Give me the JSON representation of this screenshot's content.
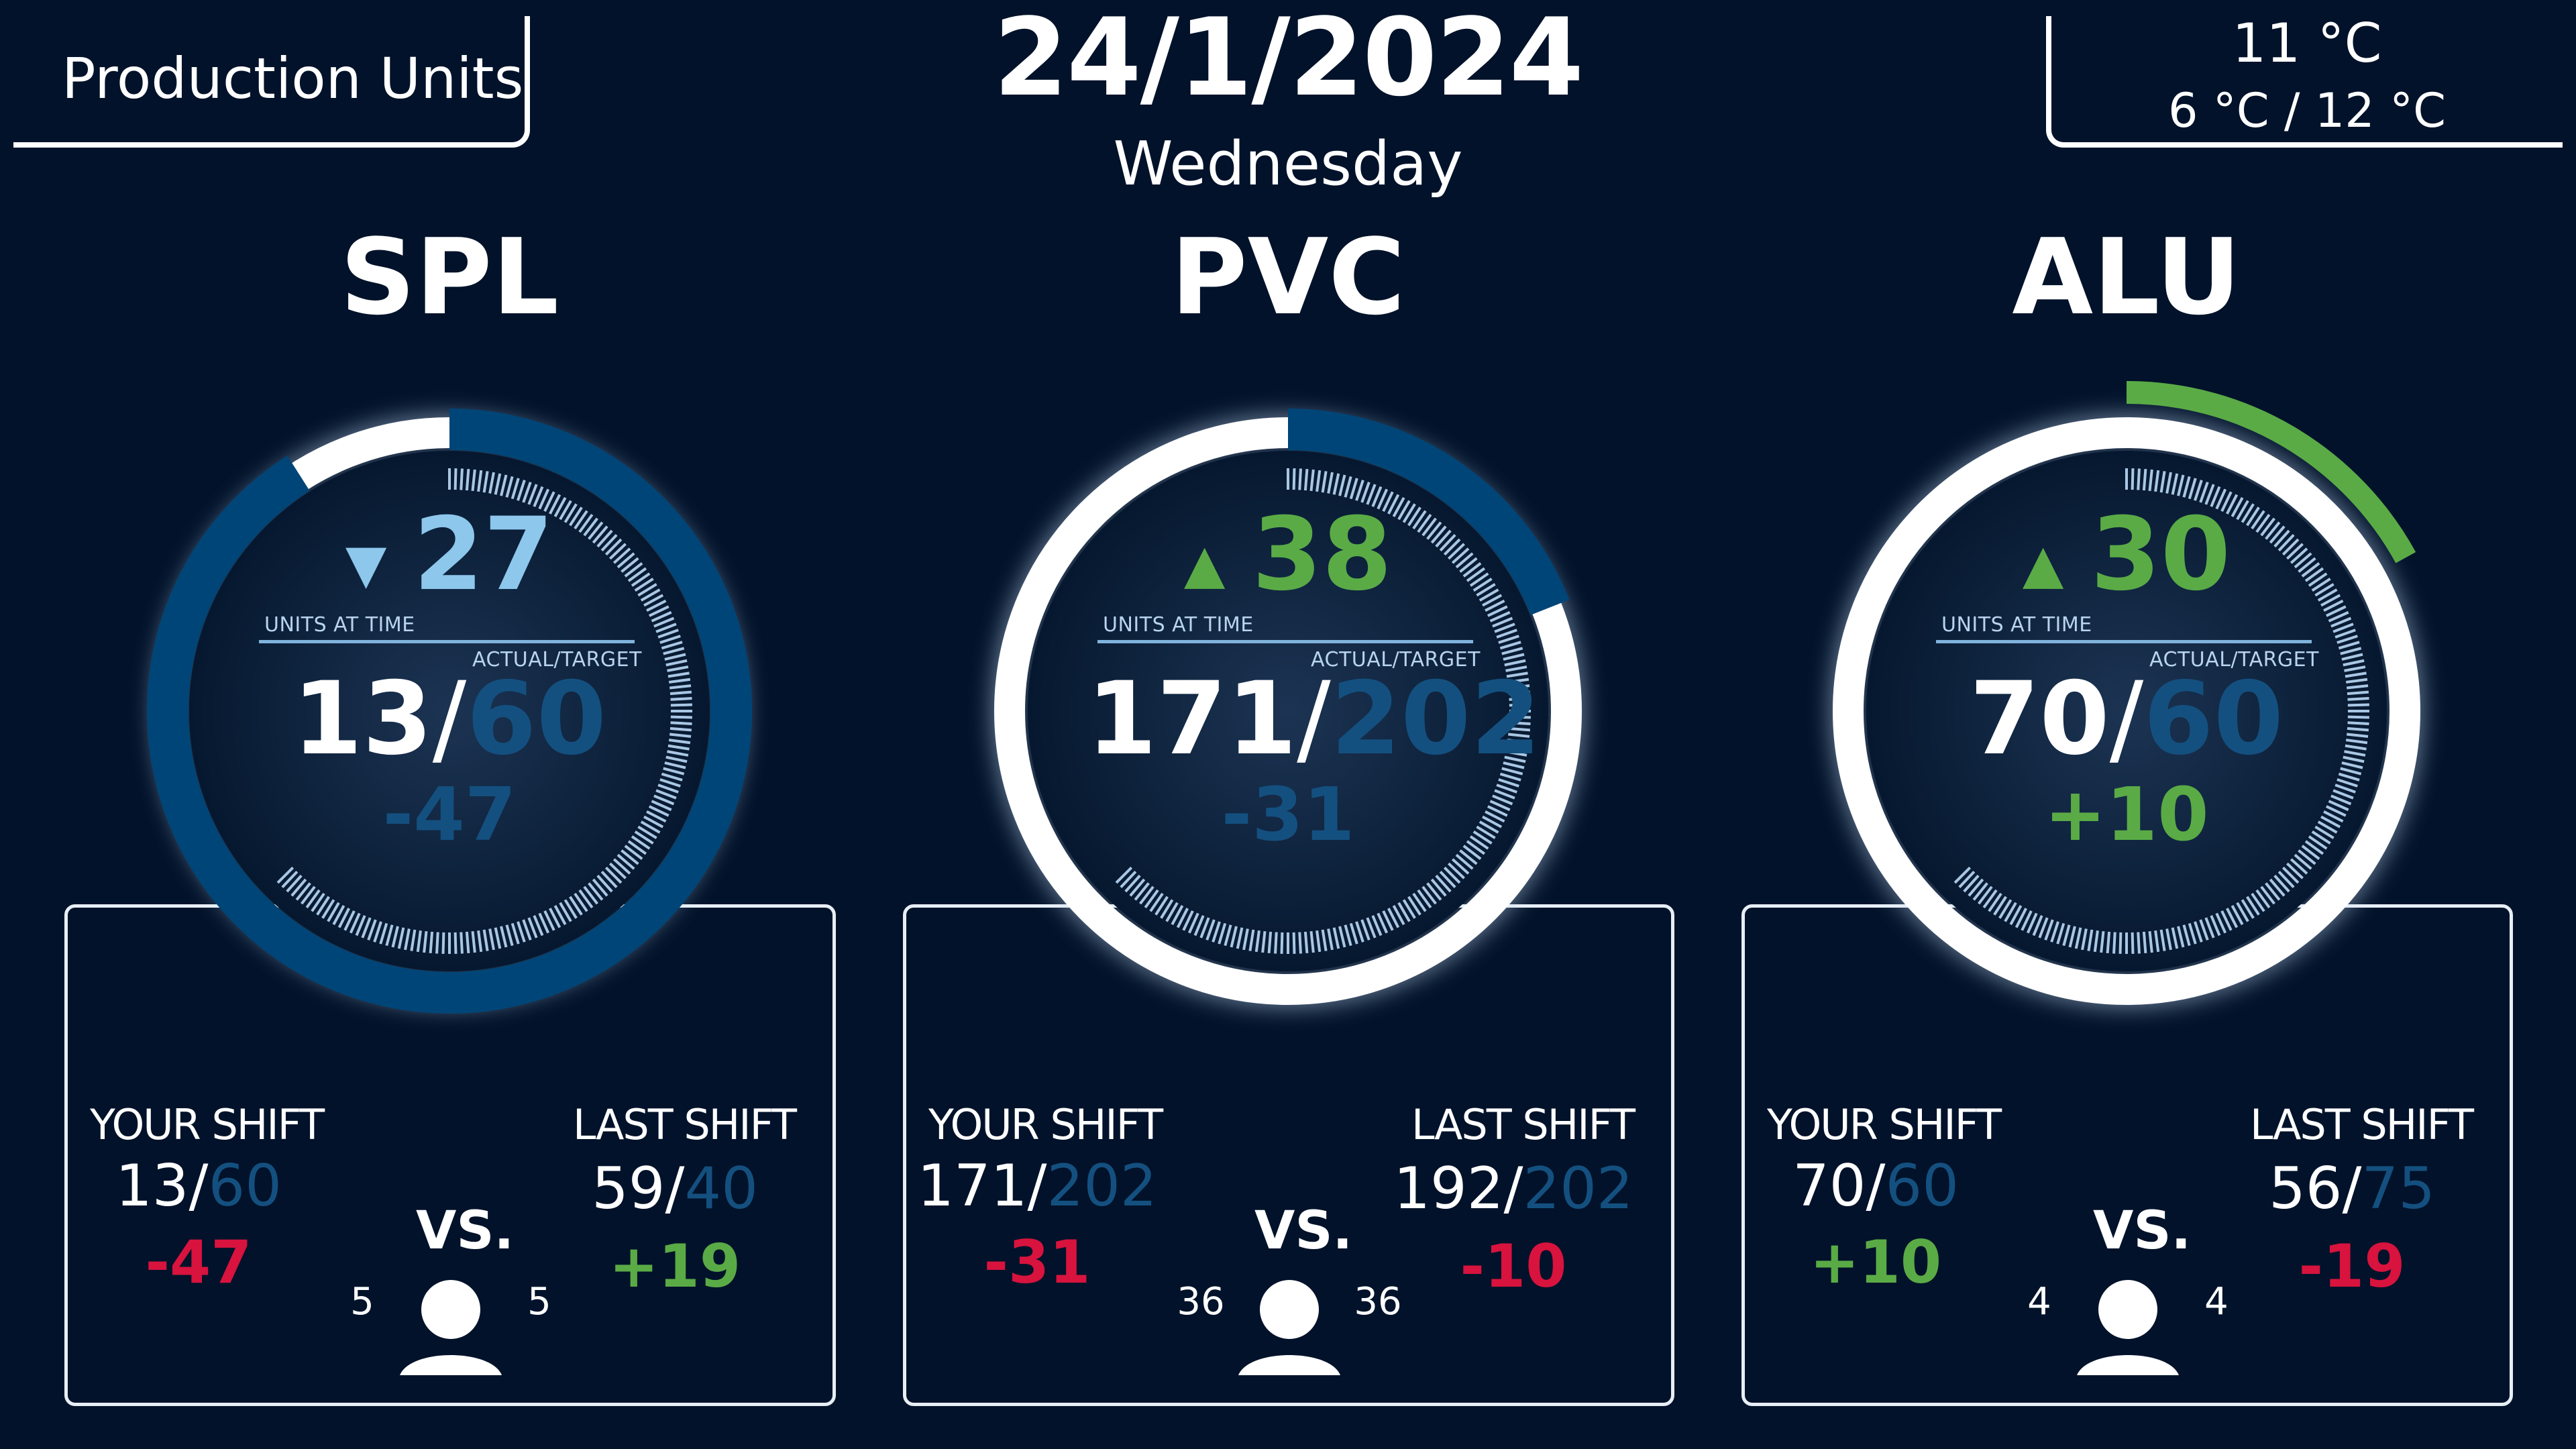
{
  "header": {
    "label": "Production Units",
    "date": "24/1/2024",
    "weekday": "Wednesday",
    "temperature": "11 °C",
    "temperature_range": "6 °C / 12 °C"
  },
  "colors": {
    "background": "#01122a",
    "positive": "#5aab46",
    "negative": "#d7133e",
    "target_blue": "#14507f",
    "light_blue": "#8dc7ec",
    "ring_blue": "#004577",
    "white": "#ffffff"
  },
  "units": [
    {
      "name": "SPL",
      "arrow": "▼",
      "arrow_icon": "triangle-down-icon",
      "units_at_time": "27",
      "units_at_time_label": "UNITS AT TIME",
      "actual_target_label": "ACTUAL/TARGET",
      "actual": "13",
      "slash": "/",
      "target": "60",
      "difference": "-47",
      "progress": 0.91,
      "progress_color": "#004577",
      "track_color": "#ffffff",
      "your_shift": {
        "label": "YOUR SHIFT",
        "actual": "13",
        "target": "60",
        "difference": "-47"
      },
      "last_shift": {
        "label": "LAST SHIFT",
        "actual": "59",
        "target": "40",
        "difference": "+19"
      },
      "vs_label": "VS.",
      "left_count": "5",
      "right_count": "5"
    },
    {
      "name": "PVC",
      "arrow": "▲",
      "arrow_icon": "triangle-up-icon",
      "units_at_time": "38",
      "units_at_time_label": "UNITS AT TIME",
      "actual_target_label": "ACTUAL/TARGET",
      "actual": "171",
      "slash": "/",
      "target": "202",
      "difference": "-31",
      "progress": 0.19,
      "progress_color": "#004577",
      "track_color": "#ffffff",
      "your_shift": {
        "label": "YOUR SHIFT",
        "actual": "171",
        "target": "202",
        "difference": "-31"
      },
      "last_shift": {
        "label": "LAST SHIFT",
        "actual": "192",
        "target": "202",
        "difference": "-10"
      },
      "vs_label": "VS.",
      "left_count": "36",
      "right_count": "36"
    },
    {
      "name": "ALU",
      "arrow": "▲",
      "arrow_icon": "triangle-up-icon",
      "units_at_time": "30",
      "units_at_time_label": "UNITS AT TIME",
      "actual_target_label": "ACTUAL/TARGET",
      "actual": "70",
      "slash": "/",
      "target": "60",
      "difference": "+10",
      "progress": 0.17,
      "progress_color": "#5aab46",
      "track_color": "#ffffff",
      "your_shift": {
        "label": "YOUR SHIFT",
        "actual": "70",
        "target": "60",
        "difference": "+10"
      },
      "last_shift": {
        "label": "LAST SHIFT",
        "actual": "56",
        "target": "75",
        "difference": "-19"
      },
      "vs_label": "VS.",
      "left_count": "4",
      "right_count": "4"
    }
  ]
}
